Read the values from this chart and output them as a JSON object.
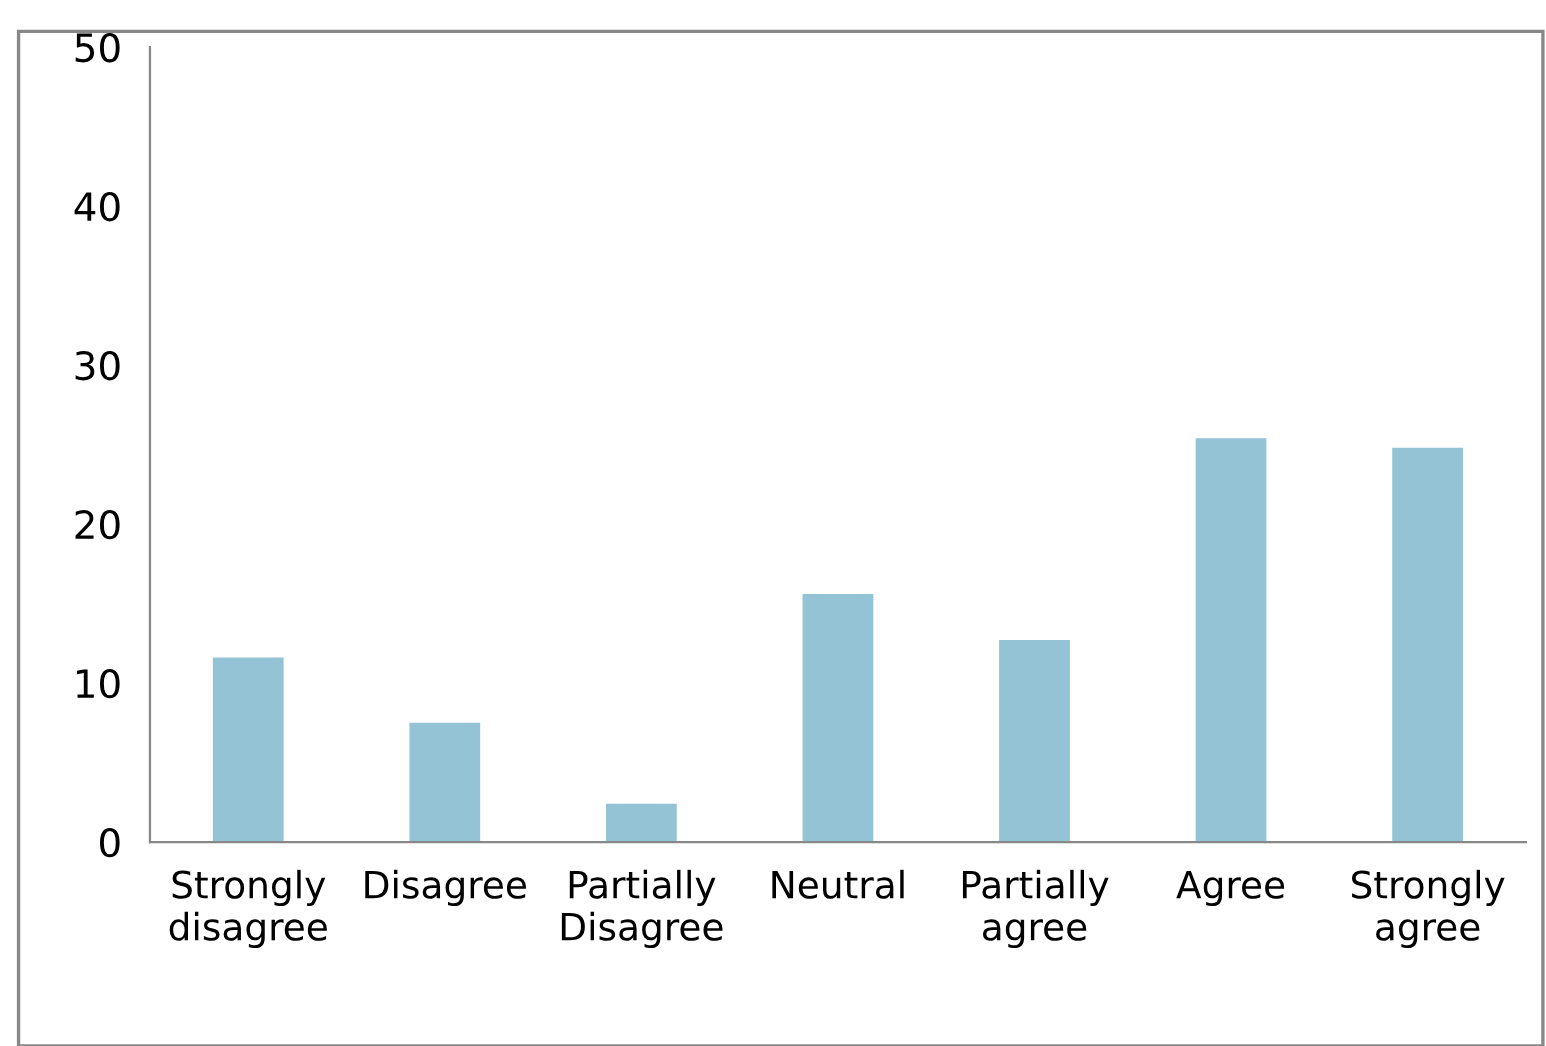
{
  "chart_data": {
    "type": "bar",
    "categories": [
      "Strongly\ndisagree",
      "Disagree",
      "Partially\nDisagree",
      "Neutral",
      "Partially\nagree",
      "Agree",
      "Strongly\nagree"
    ],
    "values": [
      11.6,
      7.5,
      2.4,
      15.6,
      12.7,
      25.4,
      24.8
    ],
    "color": "#93c3d5",
    "ylim": [
      0,
      50
    ],
    "yticks": [
      0,
      10,
      20,
      30,
      40,
      50
    ],
    "grid": false,
    "legend": false
  }
}
